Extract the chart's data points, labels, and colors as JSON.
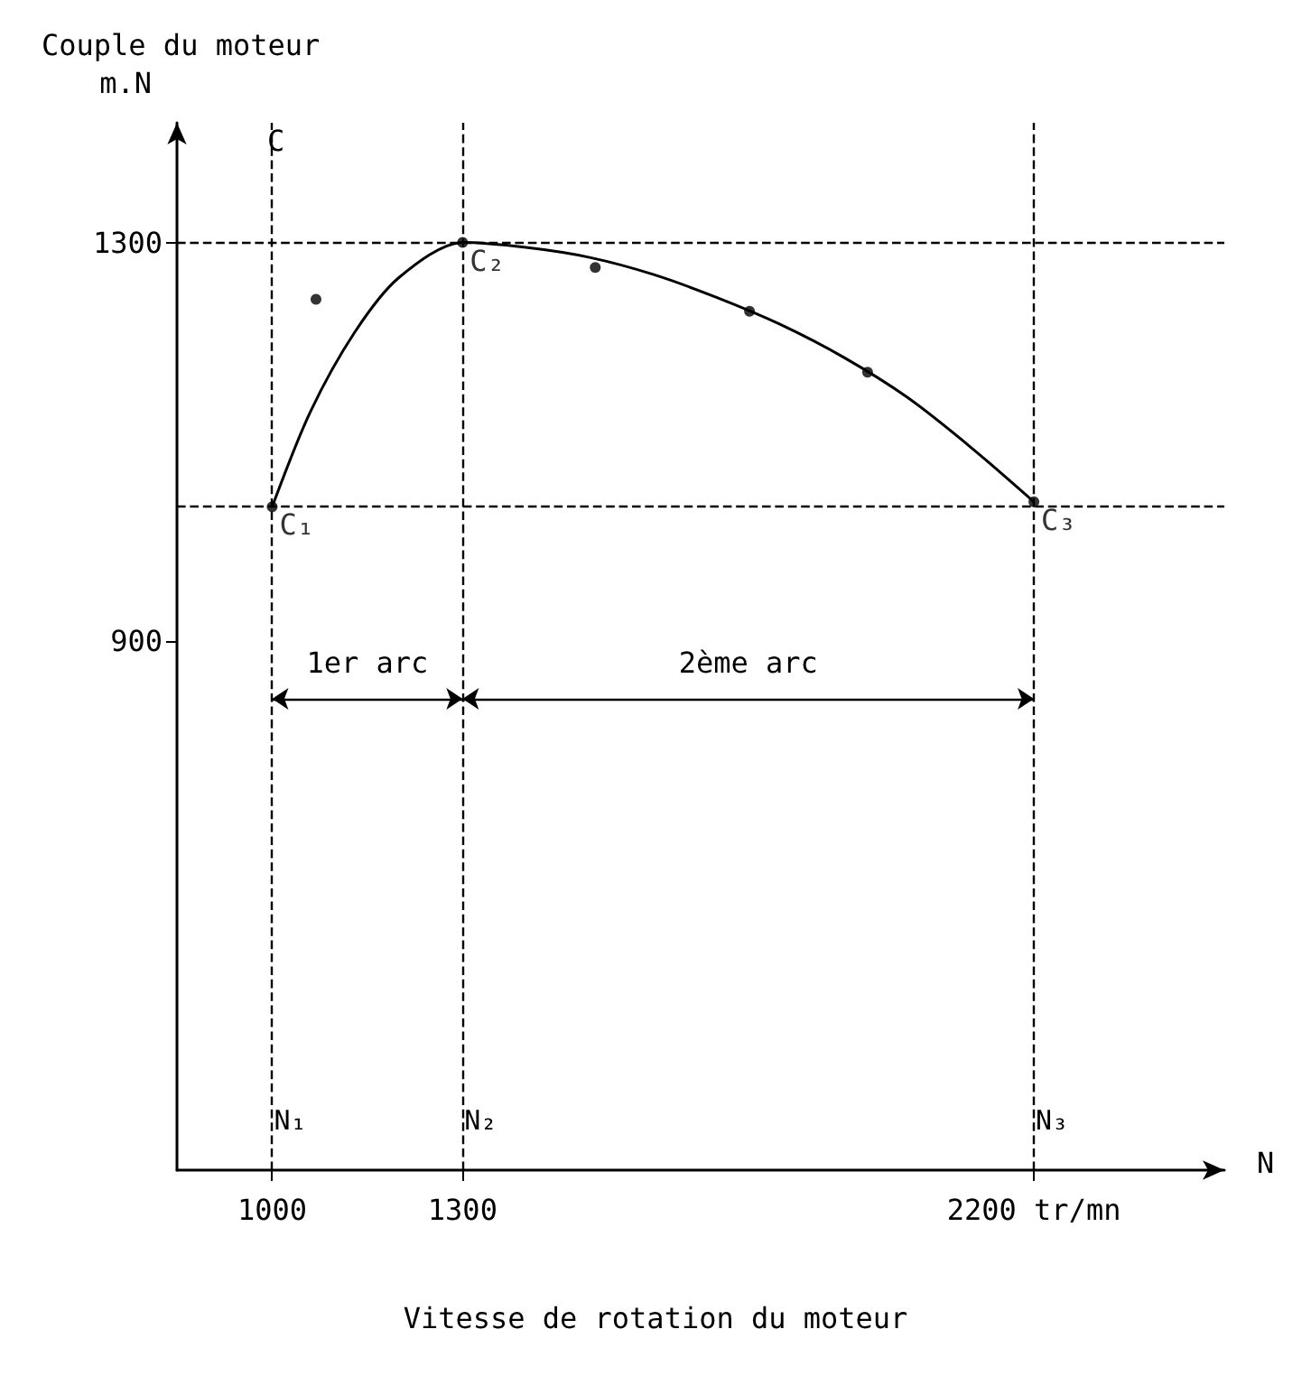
{
  "chart_data": {
    "type": "line",
    "title": "Couple du moteur",
    "xlabel": "Vitesse de rotation du moteur",
    "ylabel": "m.N",
    "xlim": [
      850,
      2500
    ],
    "ylim": [
      370,
      1420
    ],
    "xticks": [
      1000,
      1300,
      {
        "value": 2200,
        "label": "2200 tr/mn"
      }
    ],
    "yticks": [
      900,
      1300
    ],
    "series": [
      {
        "color": "#000000",
        "line_style": "solid",
        "marker": "none",
        "x": [
          1000,
          1060,
          1130,
          1200,
          1300,
          1400,
          1500,
          1600,
          1700,
          1800,
          1900,
          2000,
          2100,
          2200
        ],
        "values": [
          1035,
          1130,
          1210,
          1265,
          1300,
          1295,
          1285,
          1268,
          1245,
          1218,
          1185,
          1145,
          1095,
          1040
        ]
      },
      {
        "type": "scatter",
        "color": "#000000",
        "marker": "circle",
        "x": [
          1000,
          1069,
          1300,
          1509,
          1752,
          1938,
          2200
        ],
        "values": [
          1035,
          1243,
          1300,
          1275,
          1231,
          1170,
          1040
        ]
      }
    ],
    "ref_lines": [
      {
        "axis": "x",
        "value": 1000,
        "label": "N₁",
        "line_style": "dashed",
        "color": "#000000"
      },
      {
        "axis": "x",
        "value": 1300,
        "label": "N₂",
        "line_style": "dashed",
        "color": "#000000"
      },
      {
        "axis": "x",
        "value": 2200,
        "label": "N₃",
        "line_style": "dashed",
        "color": "#000000"
      },
      {
        "axis": "y",
        "value": 1300,
        "line_style": "dashed",
        "color": "#000000"
      },
      {
        "axis": "y",
        "value": 1035,
        "line_style": "dashed",
        "color": "#000000"
      }
    ],
    "annotations": [
      "C",
      "N",
      "1er arc",
      "2ème arc",
      {
        "text": "C₁",
        "x": 1000,
        "y": 1035
      },
      {
        "text": "C₂",
        "x": 1300,
        "y": 1300
      },
      {
        "text": "C₃",
        "x": 2200,
        "y": 1040
      }
    ],
    "grid": false
  }
}
